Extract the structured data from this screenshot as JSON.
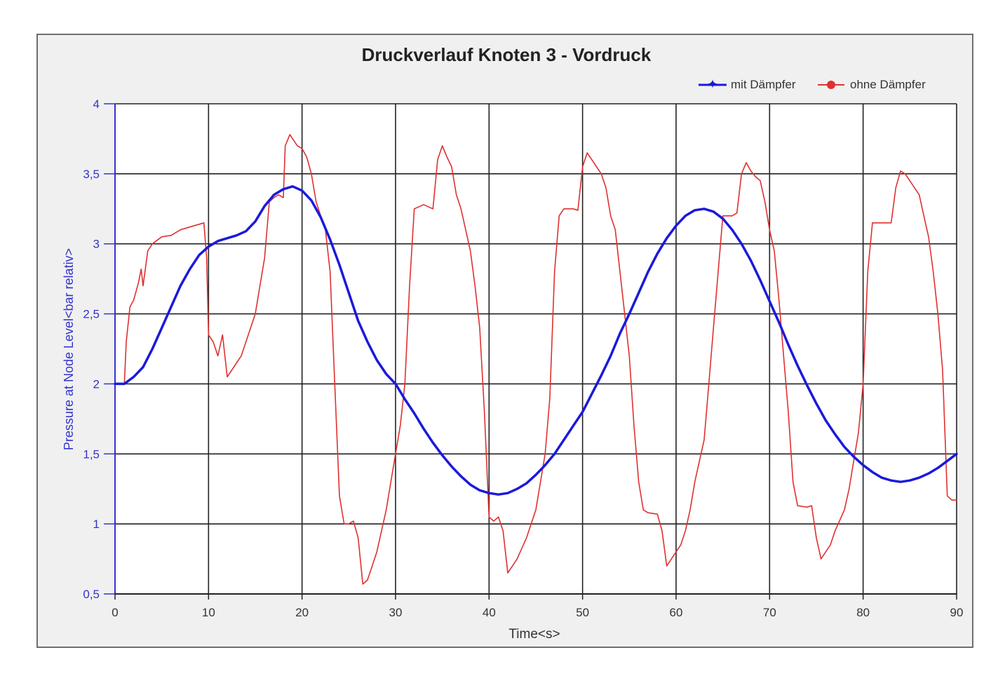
{
  "chart_data": {
    "type": "line",
    "title": "Druckverlauf Knoten 3 - Vordruck",
    "xlabel": "Time<s>",
    "ylabel": "Pressure at Node Level<bar relativ>",
    "xlim": [
      0,
      90
    ],
    "ylim": [
      0.5,
      4
    ],
    "x_ticks": [
      "0",
      "10",
      "20",
      "30",
      "40",
      "50",
      "60",
      "70",
      "80",
      "90"
    ],
    "y_ticks": [
      "0,5",
      "1",
      "1,5",
      "2",
      "2,5",
      "3",
      "3,5",
      "4"
    ],
    "x_tick_values": [
      0,
      10,
      20,
      30,
      40,
      50,
      60,
      70,
      80,
      90
    ],
    "y_tick_values": [
      0.5,
      1,
      1.5,
      2,
      2.5,
      3,
      3.5,
      4
    ],
    "grid": true,
    "legend_position": "top-right",
    "series": [
      {
        "name": "mit Dämpfer",
        "color": "#1a1adb",
        "points": [
          [
            0,
            2.0
          ],
          [
            1,
            2.0
          ],
          [
            2,
            2.05
          ],
          [
            3,
            2.12
          ],
          [
            4,
            2.25
          ],
          [
            5,
            2.4
          ],
          [
            6,
            2.55
          ],
          [
            7,
            2.7
          ],
          [
            8,
            2.82
          ],
          [
            9,
            2.92
          ],
          [
            10,
            2.98
          ],
          [
            11,
            3.02
          ],
          [
            12,
            3.04
          ],
          [
            13,
            3.06
          ],
          [
            14,
            3.09
          ],
          [
            15,
            3.16
          ],
          [
            16,
            3.27
          ],
          [
            17,
            3.35
          ],
          [
            18,
            3.39
          ],
          [
            19,
            3.41
          ],
          [
            20,
            3.38
          ],
          [
            21,
            3.31
          ],
          [
            22,
            3.19
          ],
          [
            23,
            3.03
          ],
          [
            24,
            2.85
          ],
          [
            25,
            2.65
          ],
          [
            26,
            2.45
          ],
          [
            27,
            2.3
          ],
          [
            28,
            2.17
          ],
          [
            29,
            2.07
          ],
          [
            30,
            2.0
          ],
          [
            31,
            1.89
          ],
          [
            32,
            1.79
          ],
          [
            33,
            1.68
          ],
          [
            34,
            1.58
          ],
          [
            35,
            1.49
          ],
          [
            36,
            1.41
          ],
          [
            37,
            1.34
          ],
          [
            38,
            1.28
          ],
          [
            39,
            1.24
          ],
          [
            40,
            1.22
          ],
          [
            41,
            1.21
          ],
          [
            42,
            1.22
          ],
          [
            43,
            1.25
          ],
          [
            44,
            1.29
          ],
          [
            45,
            1.35
          ],
          [
            46,
            1.42
          ],
          [
            47,
            1.5
          ],
          [
            48,
            1.6
          ],
          [
            49,
            1.7
          ],
          [
            50,
            1.8
          ],
          [
            51,
            1.93
          ],
          [
            52,
            2.06
          ],
          [
            53,
            2.2
          ],
          [
            54,
            2.36
          ],
          [
            55,
            2.5
          ],
          [
            56,
            2.65
          ],
          [
            57,
            2.8
          ],
          [
            58,
            2.93
          ],
          [
            59,
            3.04
          ],
          [
            60,
            3.13
          ],
          [
            61,
            3.2
          ],
          [
            62,
            3.24
          ],
          [
            63,
            3.25
          ],
          [
            64,
            3.23
          ],
          [
            65,
            3.18
          ],
          [
            66,
            3.1
          ],
          [
            67,
            3.0
          ],
          [
            68,
            2.88
          ],
          [
            69,
            2.74
          ],
          [
            70,
            2.59
          ],
          [
            71,
            2.44
          ],
          [
            72,
            2.28
          ],
          [
            73,
            2.13
          ],
          [
            74,
            1.99
          ],
          [
            75,
            1.86
          ],
          [
            76,
            1.74
          ],
          [
            77,
            1.64
          ],
          [
            78,
            1.55
          ],
          [
            79,
            1.48
          ],
          [
            80,
            1.42
          ],
          [
            81,
            1.37
          ],
          [
            82,
            1.33
          ],
          [
            83,
            1.31
          ],
          [
            84,
            1.3
          ],
          [
            85,
            1.31
          ],
          [
            86,
            1.33
          ],
          [
            87,
            1.36
          ],
          [
            88,
            1.4
          ],
          [
            89,
            1.45
          ],
          [
            90,
            1.5
          ]
        ]
      },
      {
        "name": "ohne Dämpfer",
        "color": "#e03030",
        "points": [
          [
            0,
            2.0
          ],
          [
            1,
            2.0
          ],
          [
            1.2,
            2.3
          ],
          [
            1.6,
            2.55
          ],
          [
            2,
            2.6
          ],
          [
            2.5,
            2.72
          ],
          [
            2.8,
            2.82
          ],
          [
            3,
            2.7
          ],
          [
            3.5,
            2.95
          ],
          [
            4,
            3.0
          ],
          [
            5,
            3.05
          ],
          [
            6,
            3.06
          ],
          [
            7,
            3.1
          ],
          [
            8,
            3.12
          ],
          [
            9,
            3.14
          ],
          [
            9.5,
            3.15
          ],
          [
            9.8,
            2.9
          ],
          [
            10,
            2.35
          ],
          [
            10.5,
            2.3
          ],
          [
            11,
            2.2
          ],
          [
            11.5,
            2.35
          ],
          [
            12,
            2.05
          ],
          [
            12.5,
            2.1
          ],
          [
            13,
            2.15
          ],
          [
            13.5,
            2.2
          ],
          [
            14,
            2.3
          ],
          [
            15,
            2.5
          ],
          [
            16,
            2.9
          ],
          [
            16.5,
            3.3
          ],
          [
            17,
            3.33
          ],
          [
            17.5,
            3.35
          ],
          [
            18,
            3.33
          ],
          [
            18.2,
            3.7
          ],
          [
            18.7,
            3.78
          ],
          [
            19,
            3.75
          ],
          [
            19.5,
            3.7
          ],
          [
            20,
            3.68
          ],
          [
            20.5,
            3.62
          ],
          [
            21,
            3.5
          ],
          [
            21.5,
            3.3
          ],
          [
            22,
            3.2
          ],
          [
            22.5,
            3.1
          ],
          [
            23,
            2.8
          ],
          [
            23.5,
            2.0
          ],
          [
            24,
            1.2
          ],
          [
            24.5,
            1.0
          ],
          [
            25,
            1.0
          ],
          [
            25.5,
            1.02
          ],
          [
            26,
            0.9
          ],
          [
            26.5,
            0.57
          ],
          [
            27,
            0.6
          ],
          [
            27.5,
            0.7
          ],
          [
            28,
            0.8
          ],
          [
            28.5,
            0.95
          ],
          [
            29,
            1.1
          ],
          [
            29.5,
            1.3
          ],
          [
            30,
            1.5
          ],
          [
            30.5,
            1.7
          ],
          [
            31,
            2.0
          ],
          [
            31.5,
            2.7
          ],
          [
            32,
            3.25
          ],
          [
            33,
            3.28
          ],
          [
            34,
            3.25
          ],
          [
            34.5,
            3.6
          ],
          [
            35,
            3.7
          ],
          [
            35.5,
            3.62
          ],
          [
            36,
            3.55
          ],
          [
            36.5,
            3.35
          ],
          [
            37,
            3.25
          ],
          [
            37.5,
            3.1
          ],
          [
            38,
            2.95
          ],
          [
            38.5,
            2.7
          ],
          [
            39,
            2.4
          ],
          [
            39.5,
            1.8
          ],
          [
            40,
            1.05
          ],
          [
            40.5,
            1.02
          ],
          [
            41,
            1.05
          ],
          [
            41.5,
            0.95
          ],
          [
            42,
            0.65
          ],
          [
            42.5,
            0.7
          ],
          [
            43,
            0.75
          ],
          [
            44,
            0.9
          ],
          [
            45,
            1.1
          ],
          [
            46,
            1.5
          ],
          [
            46.5,
            1.9
          ],
          [
            47,
            2.8
          ],
          [
            47.5,
            3.2
          ],
          [
            48,
            3.25
          ],
          [
            49,
            3.25
          ],
          [
            49.5,
            3.24
          ],
          [
            50,
            3.55
          ],
          [
            50.5,
            3.65
          ],
          [
            51,
            3.6
          ],
          [
            51.5,
            3.55
          ],
          [
            52,
            3.5
          ],
          [
            52.5,
            3.4
          ],
          [
            53,
            3.2
          ],
          [
            53.5,
            3.1
          ],
          [
            54,
            2.8
          ],
          [
            54.5,
            2.5
          ],
          [
            55,
            2.2
          ],
          [
            55.5,
            1.7
          ],
          [
            56,
            1.3
          ],
          [
            56.5,
            1.1
          ],
          [
            57,
            1.08
          ],
          [
            58,
            1.07
          ],
          [
            58.5,
            0.95
          ],
          [
            59,
            0.7
          ],
          [
            59.5,
            0.75
          ],
          [
            60,
            0.8
          ],
          [
            60.5,
            0.85
          ],
          [
            61,
            0.95
          ],
          [
            61.5,
            1.1
          ],
          [
            62,
            1.3
          ],
          [
            63,
            1.6
          ],
          [
            63.5,
            2.0
          ],
          [
            64,
            2.4
          ],
          [
            64.5,
            2.8
          ],
          [
            65,
            3.2
          ],
          [
            66,
            3.2
          ],
          [
            66.5,
            3.22
          ],
          [
            67,
            3.5
          ],
          [
            67.5,
            3.58
          ],
          [
            68,
            3.52
          ],
          [
            68.5,
            3.48
          ],
          [
            69,
            3.45
          ],
          [
            69.5,
            3.3
          ],
          [
            70,
            3.1
          ],
          [
            70.5,
            2.95
          ],
          [
            71,
            2.6
          ],
          [
            71.5,
            2.2
          ],
          [
            72,
            1.8
          ],
          [
            72.5,
            1.3
          ],
          [
            73,
            1.13
          ],
          [
            74,
            1.12
          ],
          [
            74.5,
            1.13
          ],
          [
            75,
            0.9
          ],
          [
            75.5,
            0.75
          ],
          [
            76,
            0.8
          ],
          [
            76.5,
            0.85
          ],
          [
            77,
            0.95
          ],
          [
            78,
            1.1
          ],
          [
            78.5,
            1.25
          ],
          [
            79,
            1.45
          ],
          [
            79.5,
            1.65
          ],
          [
            80,
            2.0
          ],
          [
            80.5,
            2.8
          ],
          [
            81,
            3.15
          ],
          [
            82,
            3.15
          ],
          [
            83,
            3.15
          ],
          [
            83.5,
            3.4
          ],
          [
            84,
            3.52
          ],
          [
            84.5,
            3.5
          ],
          [
            85,
            3.45
          ],
          [
            85.5,
            3.4
          ],
          [
            86,
            3.35
          ],
          [
            86.5,
            3.2
          ],
          [
            87,
            3.05
          ],
          [
            87.5,
            2.8
          ],
          [
            88,
            2.5
          ],
          [
            88.5,
            2.1
          ],
          [
            89,
            1.2
          ],
          [
            89.5,
            1.17
          ],
          [
            90,
            1.17
          ]
        ]
      }
    ]
  }
}
